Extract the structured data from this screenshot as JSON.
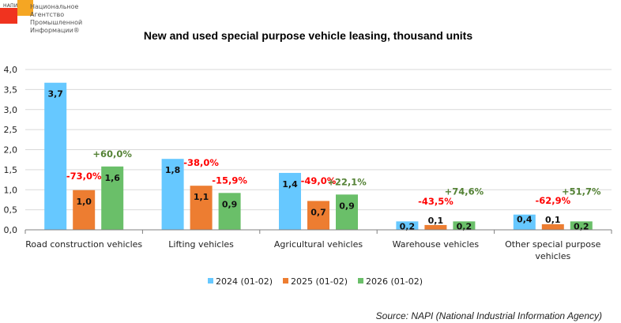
{
  "logo": {
    "abbr": "НАПИ",
    "lines": [
      "Национальное",
      "Агентство",
      "Промышленной",
      "Информации®"
    ],
    "colors": {
      "red": "#f0331f",
      "orange": "#f5a623"
    }
  },
  "source": "Source: NAPI (National Industrial Information Agency)",
  "chart_data": {
    "type": "bar",
    "title": "New and used special purpose vehicle leasing, thousand units",
    "xlabel": "",
    "ylabel": "",
    "ylim": [
      0,
      4.0
    ],
    "yticks": [
      "0,0",
      "0,5",
      "1,0",
      "1,5",
      "2,0",
      "2,5",
      "3,0",
      "3,5",
      "4,0"
    ],
    "ytick_values": [
      0,
      0.5,
      1.0,
      1.5,
      2.0,
      2.5,
      3.0,
      3.5,
      4.0
    ],
    "grid": true,
    "legend_position": "bottom",
    "categories": [
      [
        "Road construction vehicles"
      ],
      [
        "Lifting vehicles"
      ],
      [
        "Agricultural vehicles"
      ],
      [
        "Warehouse vehicles"
      ],
      [
        "Other special purpose",
        "vehicles"
      ]
    ],
    "series": [
      {
        "name": "2024 (01-02)",
        "color": "#66c8ff",
        "values": [
          3.67,
          1.77,
          1.42,
          0.21,
          0.38
        ],
        "labels": [
          "3,7",
          "1,8",
          "1,4",
          "0,2",
          "0,4"
        ]
      },
      {
        "name": "2025 (01-02)",
        "color": "#ed7d31",
        "values": [
          0.99,
          1.1,
          0.72,
          0.12,
          0.14
        ],
        "labels": [
          "1,0",
          "1,1",
          "0,7",
          "0,1",
          "0,1"
        ]
      },
      {
        "name": "2026 (01-02)",
        "color": "#6abf69",
        "values": [
          1.58,
          0.92,
          0.88,
          0.21,
          0.21
        ],
        "labels": [
          "1,6",
          "0,9",
          "0,9",
          "0,2",
          "0,2"
        ]
      }
    ],
    "annotations": {
      "change_2025_vs_2024": {
        "color": "#ff0000",
        "values": [
          "-73,0%",
          "-38,0%",
          "-49,0%",
          "-43,5%",
          "-62,9%"
        ]
      },
      "change_2026_vs_2025": {
        "colors": [
          "#548235",
          "#ff0000",
          "#548235",
          "#548235",
          "#548235"
        ],
        "values": [
          "+60,0%",
          "-15,9%",
          "+22,1%",
          "+74,6%",
          "+51,7%"
        ]
      }
    }
  }
}
